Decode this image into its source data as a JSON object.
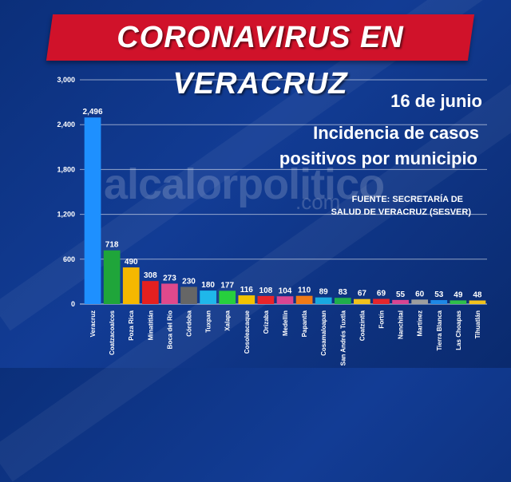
{
  "header": {
    "title": "CORONAVIRUS EN VERACRUZ"
  },
  "info": {
    "date": "16 de junio",
    "subtitle_line1": "Incidencia de casos",
    "subtitle_line2": "positivos por municipio",
    "source_line1": "FUENTE: SECRETARÍA DE",
    "source_line2": "SALUD DE VERACRUZ (SESVER)"
  },
  "watermark": {
    "main": "alcalorpolitico",
    "suffix": ".com"
  },
  "chart_data": {
    "type": "bar",
    "title": "Incidencia de casos positivos por municipio",
    "ylim": [
      0,
      3000
    ],
    "yticks": [
      0,
      600,
      1200,
      1800,
      2400,
      3000
    ],
    "ytick_labels": [
      "0",
      "600",
      "1,200",
      "1,800",
      "2,400",
      "3,000"
    ],
    "grid": true,
    "categories": [
      "Veracruz",
      "Coatzacoalcos",
      "Poza Rica",
      "Minatitlán",
      "Boca del Río",
      "Córdoba",
      "Tuxpan",
      "Xalapa",
      "Cosoleacaque",
      "Orizaba",
      "Medellín",
      "Papantla",
      "Cosamaloapan",
      "San Andrés Tuxtla",
      "Coatzintla",
      "Fortín",
      "Nanchital",
      "Martínez",
      "Tierra Blanca",
      "Las Choapas",
      "Tihuatlán"
    ],
    "values": [
      2496,
      718,
      490,
      308,
      273,
      230,
      180,
      177,
      116,
      108,
      104,
      110,
      89,
      83,
      67,
      69,
      55,
      60,
      53,
      49,
      48
    ],
    "value_labels": [
      "2,496",
      "718",
      "490",
      "308",
      "273",
      "230",
      "180",
      "177",
      "116",
      "108",
      "104",
      "110",
      "89",
      "83",
      "67",
      "69",
      "55",
      "60",
      "53",
      "49",
      "48"
    ],
    "colors": [
      "#1e90ff",
      "#1fa53a",
      "#f5b800",
      "#e42020",
      "#e0498c",
      "#666666",
      "#1fb7ea",
      "#27cf3d",
      "#f3c300",
      "#e8242a",
      "#d94592",
      "#f07a16",
      "#19a8e0",
      "#1fae4b",
      "#f1c21c",
      "#e3262d",
      "#d94592",
      "#9e9e9e",
      "#1e88e5",
      "#2fbf4a",
      "#f1c21c"
    ]
  }
}
